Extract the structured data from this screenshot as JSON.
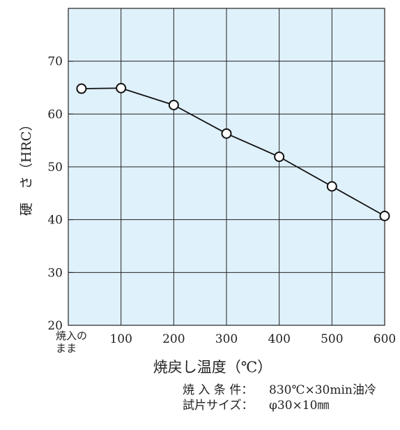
{
  "chart_data": {
    "type": "line",
    "ylabel": "硬　さ（HRC）",
    "xlabel": "焼戻し温度（℃）",
    "categories": [
      "焼入の\nまま",
      "100",
      "200",
      "300",
      "400",
      "500",
      "600"
    ],
    "x_ticks": [
      {
        "label_lines": [
          "焼入の",
          "まま"
        ],
        "value": 25
      },
      {
        "label_lines": [
          "100"
        ],
        "value": 100
      },
      {
        "label_lines": [
          "200"
        ],
        "value": 200
      },
      {
        "label_lines": [
          "300"
        ],
        "value": 300
      },
      {
        "label_lines": [
          "400"
        ],
        "value": 400
      },
      {
        "label_lines": [
          "500"
        ],
        "value": 500
      },
      {
        "label_lines": [
          "600"
        ],
        "value": 600
      }
    ],
    "y_ticks": [
      20,
      30,
      40,
      50,
      60,
      70
    ],
    "xlim": [
      0,
      600
    ],
    "ylim": [
      20,
      80
    ],
    "grid": true,
    "series": [
      {
        "points": [
          {
            "x": 25,
            "y": 64.8
          },
          {
            "x": 100,
            "y": 64.9
          },
          {
            "x": 200,
            "y": 61.7
          },
          {
            "x": 300,
            "y": 56.3
          },
          {
            "x": 400,
            "y": 51.9
          },
          {
            "x": 500,
            "y": 46.3
          },
          {
            "x": 600,
            "y": 40.7
          }
        ]
      }
    ],
    "colors": {
      "plot_background": "#dff1fb",
      "grid": "#222222",
      "line": "#111111",
      "marker_fill": "#ffffff"
    }
  },
  "notes": [
    {
      "label": "焼 入 条 件：",
      "value": "830℃×30min油冷"
    },
    {
      "label": "試片サイズ：",
      "value": "φ30×10㎜"
    }
  ]
}
